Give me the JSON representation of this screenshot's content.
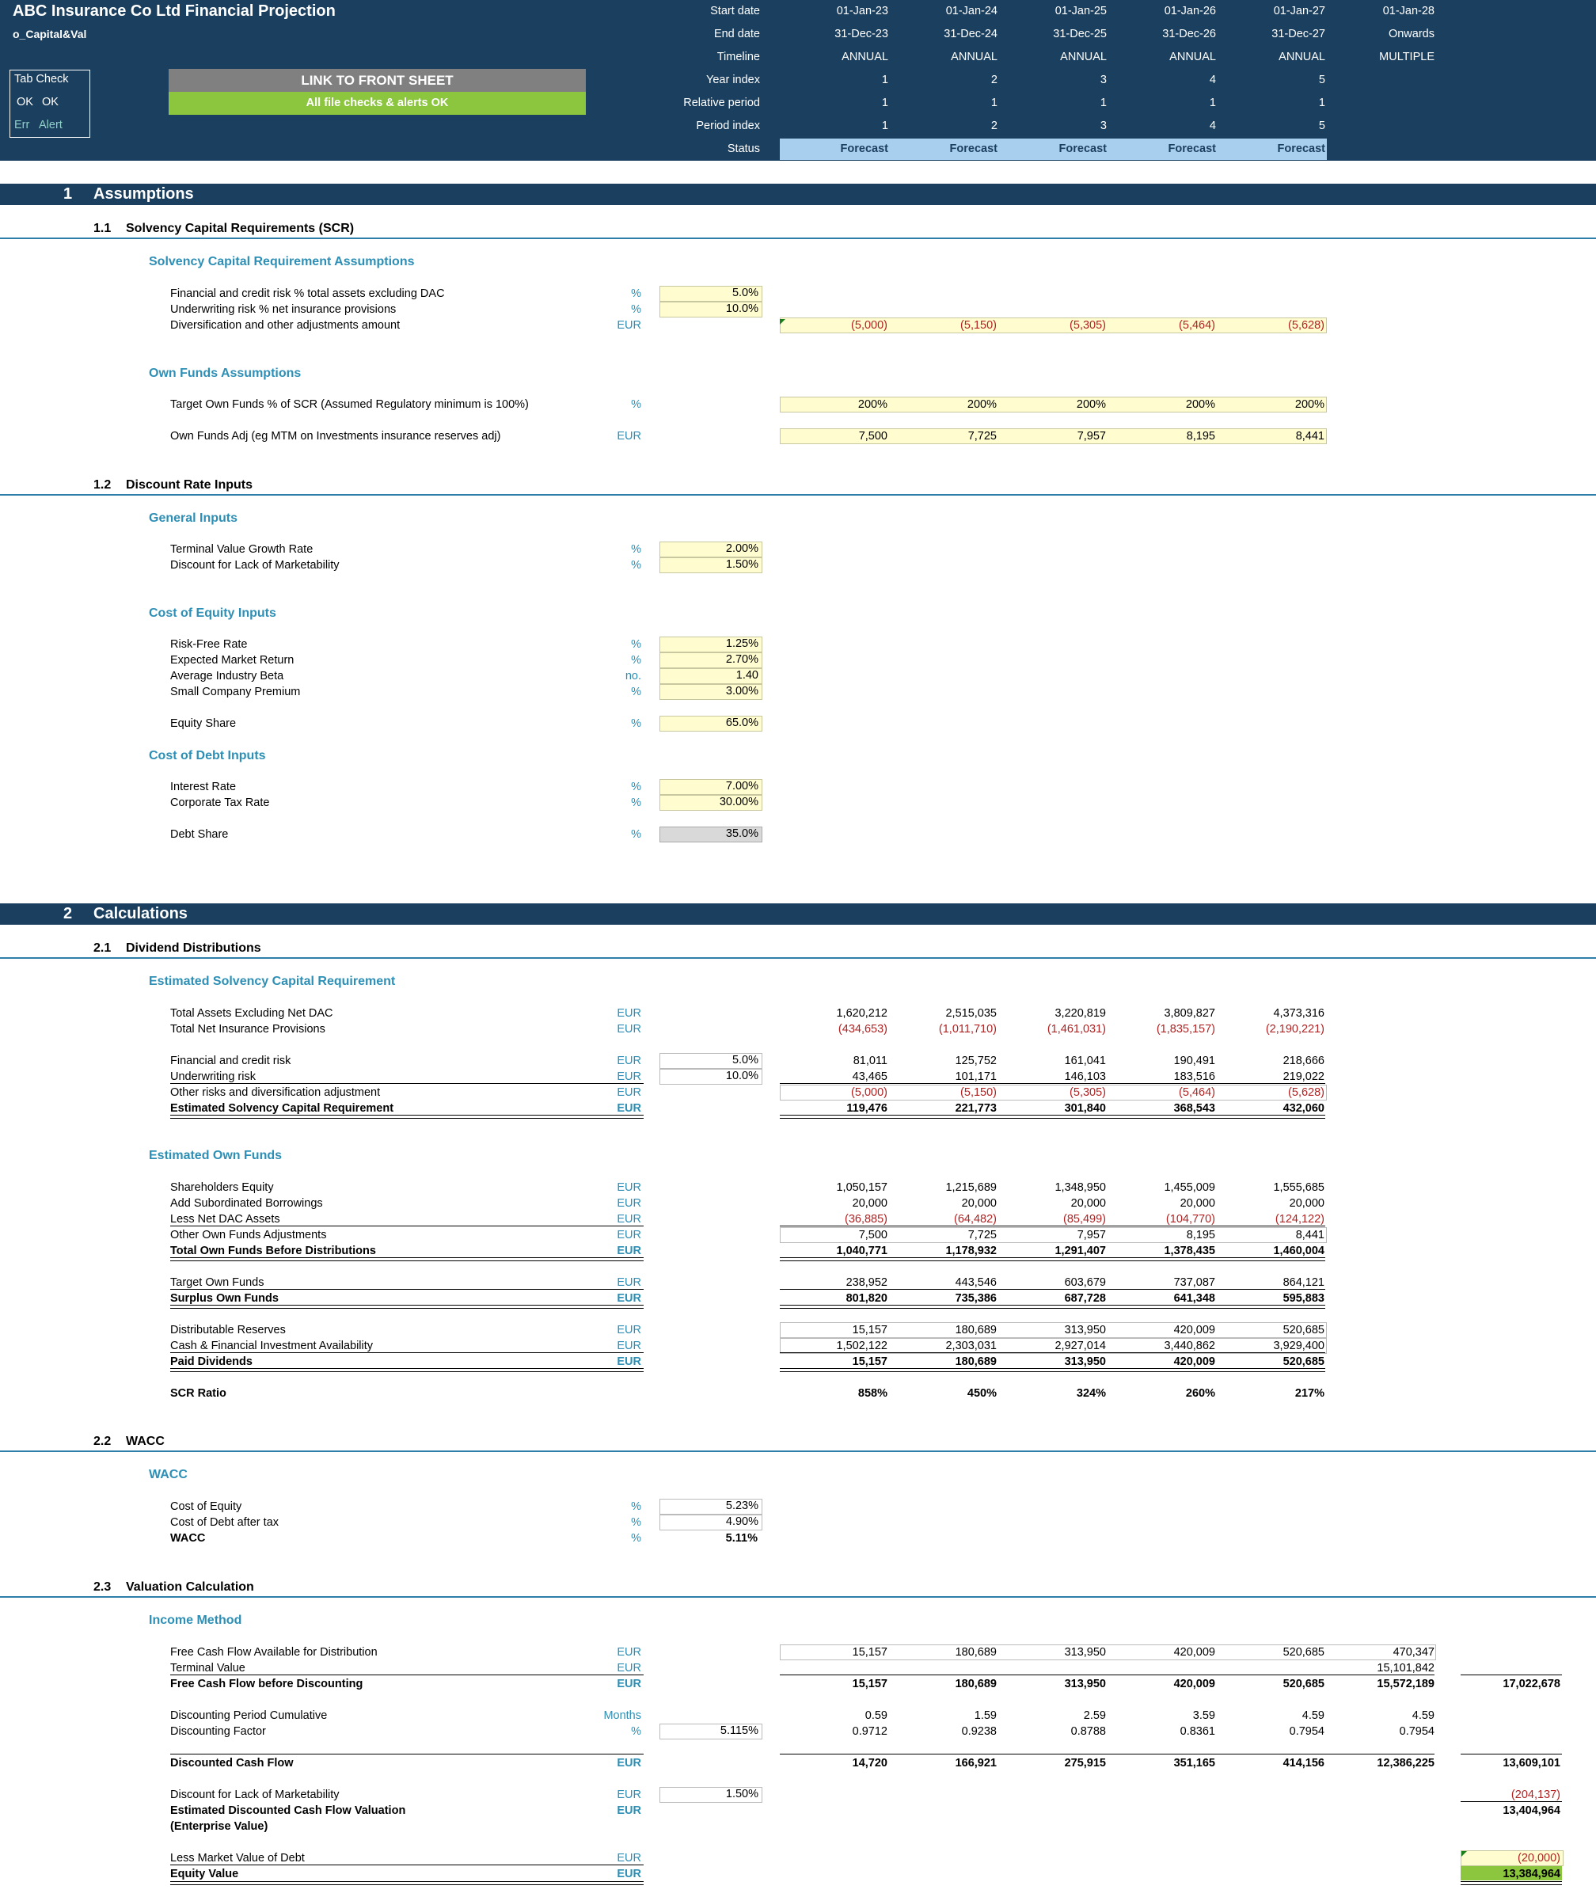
{
  "header": {
    "title": "ABC Insurance Co Ltd Financial Projection",
    "sheet_name": "o_Capital&Val",
    "tab_check": {
      "title": "Tab Check",
      "row1": [
        "OK",
        "OK"
      ],
      "row2": [
        "Err",
        "Alert"
      ]
    },
    "link_button": "LINK TO FRONT SHEET",
    "checks_status": "All file checks & alerts OK",
    "row_labels": [
      "Start date",
      "End date",
      "Timeline",
      "Year index",
      "Relative period",
      "Period index",
      "Status"
    ],
    "columns": [
      {
        "start": "01-Jan-23",
        "end": "31-Dec-23",
        "timeline": "ANNUAL",
        "year_index": "1",
        "relative": "1",
        "period": "1",
        "status": "Forecast"
      },
      {
        "start": "01-Jan-24",
        "end": "31-Dec-24",
        "timeline": "ANNUAL",
        "year_index": "2",
        "relative": "1",
        "period": "2",
        "status": "Forecast"
      },
      {
        "start": "01-Jan-25",
        "end": "31-Dec-25",
        "timeline": "ANNUAL",
        "year_index": "3",
        "relative": "1",
        "period": "3",
        "status": "Forecast"
      },
      {
        "start": "01-Jan-26",
        "end": "31-Dec-26",
        "timeline": "ANNUAL",
        "year_index": "4",
        "relative": "1",
        "period": "4",
        "status": "Forecast"
      },
      {
        "start": "01-Jan-27",
        "end": "31-Dec-27",
        "timeline": "ANNUAL",
        "year_index": "5",
        "relative": "1",
        "period": "5",
        "status": "Forecast"
      },
      {
        "start": "01-Jan-28",
        "end": "Onwards",
        "timeline": "MULTIPLE",
        "year_index": "",
        "relative": "",
        "period": "",
        "status": ""
      }
    ]
  },
  "s1": {
    "num": "1",
    "title": "Assumptions",
    "s11": {
      "num": "1.1",
      "title": "Solvency Capital Requirements (SCR)"
    },
    "scr_assump": {
      "heading": "Solvency Capital Requirement Assumptions",
      "fin_label": "Financial and credit risk % total assets excluding DAC",
      "fin_unit": "%",
      "fin_val": "5.0%",
      "uw_label": "Underwriting risk % net insurance provisions",
      "uw_unit": "%",
      "uw_val": "10.0%",
      "div_label": "Diversification and other adjustments amount",
      "div_unit": "EUR",
      "div_vals": [
        "(5,000)",
        "(5,150)",
        "(5,305)",
        "(5,464)",
        "(5,628)"
      ]
    },
    "own_funds_assump": {
      "heading": "Own Funds Assumptions",
      "target_label": "Target Own Funds % of SCR (Assumed Regulatory minimum is 100%)",
      "target_unit": "%",
      "target_vals": [
        "200%",
        "200%",
        "200%",
        "200%",
        "200%"
      ],
      "adj_label": "Own Funds Adj (eg MTM on Investments insurance reserves adj)",
      "adj_unit": "EUR",
      "adj_vals": [
        "7,500",
        "7,725",
        "7,957",
        "8,195",
        "8,441"
      ]
    },
    "s12": {
      "num": "1.2",
      "title": "Discount Rate Inputs"
    },
    "general": {
      "heading": "General Inputs",
      "tv_label": "Terminal Value Growth Rate",
      "tv_unit": "%",
      "tv_val": "2.00%",
      "dlom_label": "Discount for Lack of Marketability",
      "dlom_unit": "%",
      "dlom_val": "1.50%"
    },
    "coe": {
      "heading": "Cost of Equity Inputs",
      "rf_label": "Risk-Free Rate",
      "rf_unit": "%",
      "rf_val": "1.25%",
      "mr_label": "Expected Market Return",
      "mr_unit": "%",
      "mr_val": "2.70%",
      "beta_label": "Average Industry Beta",
      "beta_unit": "no.",
      "beta_val": "1.40",
      "scp_label": "Small Company Premium",
      "scp_unit": "%",
      "scp_val": "3.00%",
      "es_label": "Equity Share",
      "es_unit": "%",
      "es_val": "65.0%"
    },
    "cod": {
      "heading": "Cost of Debt Inputs",
      "ir_label": "Interest Rate",
      "ir_unit": "%",
      "ir_val": "7.00%",
      "ct_label": "Corporate Tax Rate",
      "ct_unit": "%",
      "ct_val": "30.00%",
      "ds_label": "Debt Share",
      "ds_unit": "%",
      "ds_val": "35.0%"
    }
  },
  "s2": {
    "num": "2",
    "title": "Calculations",
    "s21": {
      "num": "2.1",
      "title": "Dividend Distributions"
    },
    "scr": {
      "heading": "Estimated Solvency Capital Requirement",
      "rows": [
        {
          "label": "Total Assets Excluding Net DAC",
          "unit": "EUR",
          "vals": [
            "1,620,212",
            "2,515,035",
            "3,220,819",
            "3,809,827",
            "4,373,316"
          ]
        },
        {
          "label": "Total Net Insurance Provisions",
          "unit": "EUR",
          "vals": [
            "(434,653)",
            "(1,011,710)",
            "(1,461,031)",
            "(1,835,157)",
            "(2,190,221)"
          ]
        },
        {
          "label": "Financial and credit risk",
          "unit": "EUR",
          "pct": "5.0%",
          "vals": [
            "81,011",
            "125,752",
            "161,041",
            "190,491",
            "218,666"
          ]
        },
        {
          "label": "Underwriting risk",
          "unit": "EUR",
          "pct": "10.0%",
          "vals": [
            "43,465",
            "101,171",
            "146,103",
            "183,516",
            "219,022"
          ]
        },
        {
          "label": "Other risks and diversification adjustment",
          "unit": "EUR",
          "vals": [
            "(5,000)",
            "(5,150)",
            "(5,305)",
            "(5,464)",
            "(5,628)"
          ]
        },
        {
          "label": "Estimated Solvency Capital Requirement",
          "unit": "EUR",
          "vals": [
            "119,476",
            "221,773",
            "301,840",
            "368,543",
            "432,060"
          ]
        }
      ]
    },
    "own_funds": {
      "heading": "Estimated Own Funds",
      "rows": [
        {
          "label": "Shareholders Equity",
          "unit": "EUR",
          "vals": [
            "1,050,157",
            "1,215,689",
            "1,348,950",
            "1,455,009",
            "1,555,685"
          ]
        },
        {
          "label": "Add Subordinated Borrowings",
          "unit": "EUR",
          "vals": [
            "20,000",
            "20,000",
            "20,000",
            "20,000",
            "20,000"
          ]
        },
        {
          "label": "Less Net DAC Assets",
          "unit": "EUR",
          "vals": [
            "(36,885)",
            "(64,482)",
            "(85,499)",
            "(104,770)",
            "(124,122)"
          ]
        },
        {
          "label": "Other Own Funds Adjustments",
          "unit": "EUR",
          "vals": [
            "7,500",
            "7,725",
            "7,957",
            "8,195",
            "8,441"
          ]
        },
        {
          "label": "Total Own Funds Before Distributions",
          "unit": "EUR",
          "vals": [
            "1,040,771",
            "1,178,932",
            "1,291,407",
            "1,378,435",
            "1,460,004"
          ]
        },
        {
          "label": "Target Own Funds",
          "unit": "EUR",
          "vals": [
            "238,952",
            "443,546",
            "603,679",
            "737,087",
            "864,121"
          ]
        },
        {
          "label": "Surplus Own Funds",
          "unit": "EUR",
          "vals": [
            "801,820",
            "735,386",
            "687,728",
            "641,348",
            "595,883"
          ]
        },
        {
          "label": "Distributable Reserves",
          "unit": "EUR",
          "vals": [
            "15,157",
            "180,689",
            "313,950",
            "420,009",
            "520,685"
          ]
        },
        {
          "label": "Cash & Financial Investment Availability",
          "unit": "EUR",
          "vals": [
            "1,502,122",
            "2,303,031",
            "2,927,014",
            "3,440,862",
            "3,929,400"
          ]
        },
        {
          "label": "Paid Dividends",
          "unit": "EUR",
          "vals": [
            "15,157",
            "180,689",
            "313,950",
            "420,009",
            "520,685"
          ]
        },
        {
          "label": "SCR Ratio",
          "unit": "",
          "vals": [
            "858%",
            "450%",
            "324%",
            "260%",
            "217%"
          ]
        }
      ]
    },
    "s22": {
      "num": "2.2",
      "title": "WACC"
    },
    "wacc": {
      "heading": "WACC",
      "coe_label": "Cost of Equity",
      "coe_unit": "%",
      "coe_val": "5.23%",
      "cod_label": "Cost of Debt after tax",
      "cod_unit": "%",
      "cod_val": "4.90%",
      "wacc_label": "WACC",
      "wacc_unit": "%",
      "wacc_val": "5.11%"
    },
    "s23": {
      "num": "2.3",
      "title": "Valuation Calculation"
    },
    "income": {
      "heading": "Income Method",
      "fcf_label": "Free Cash Flow Available for Distribution",
      "fcf_unit": "EUR",
      "fcf_vals": [
        "15,157",
        "180,689",
        "313,950",
        "420,009",
        "520,685",
        "470,347"
      ],
      "tv_label": "Terminal Value",
      "tv_unit": "EUR",
      "tv_val": "15,101,842",
      "fcfb_label": "Free Cash Flow before Discounting",
      "fcfb_unit": "EUR",
      "fcfb_vals": [
        "15,157",
        "180,689",
        "313,950",
        "420,009",
        "520,685",
        "15,572,189"
      ],
      "fcfb_total": "17,022,678",
      "dpc_label": "Discounting Period Cumulative",
      "dpc_unit": "Months",
      "dpc_vals": [
        "0.59",
        "1.59",
        "2.59",
        "3.59",
        "4.59",
        "4.59"
      ],
      "df_label": "Discounting Factor",
      "df_unit": "%",
      "df_pct": "5.115%",
      "df_vals": [
        "0.9712",
        "0.9238",
        "0.8788",
        "0.8361",
        "0.7954",
        "0.7954"
      ],
      "dcf_label": "Discounted Cash Flow",
      "dcf_unit": "EUR",
      "dcf_vals": [
        "14,720",
        "166,921",
        "275,915",
        "351,165",
        "414,156",
        "12,386,225"
      ],
      "dcf_total": "13,609,101",
      "dlom_label": "Discount for Lack of Marketability",
      "dlom_unit": "EUR",
      "dlom_pct": "1.50%",
      "dlom_total": "(204,137)",
      "edcf_label": "Estimated Discounted Cash Flow Valuation",
      "edcf_label2": "(Enterprise Value)",
      "edcf_unit": "EUR",
      "edcf_total": "13,404,964",
      "debt_label": "Less Market Value of Debt",
      "debt_unit": "EUR",
      "debt_total": "(20,000)",
      "eq_label": "Equity Value",
      "eq_unit": "EUR",
      "eq_total": "13,384,964"
    }
  }
}
